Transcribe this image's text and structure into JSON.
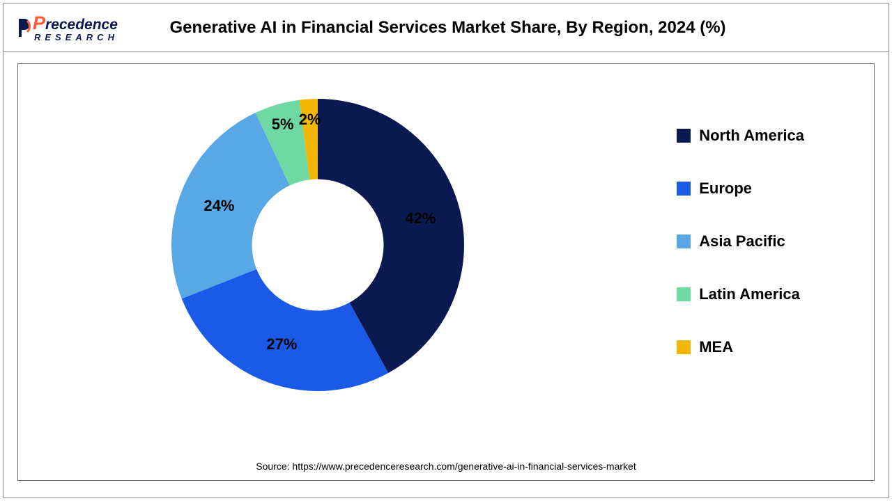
{
  "logo": {
    "top_prefix": "P",
    "top_rest": "recedence",
    "bottom": "RESEARCH",
    "accent_color": "#ff5a36",
    "main_color": "#0a1a50"
  },
  "chart": {
    "type": "donut",
    "title": "Generative AI in Financial Services Market Share, By Region, 2024 (%)",
    "title_fontsize": 24,
    "background_color": "#ffffff",
    "inner_radius_ratio": 0.45,
    "slices": [
      {
        "label": "North America",
        "value": 42,
        "color": "#0a1a50",
        "display": "42%"
      },
      {
        "label": "Europe",
        "value": 27,
        "color": "#1a5ae6",
        "display": "27%"
      },
      {
        "label": "Asia Pacific",
        "value": 24,
        "color": "#59a8e6",
        "display": "24%"
      },
      {
        "label": "Latin America",
        "value": 5,
        "color": "#6ed9a3",
        "display": "5%"
      },
      {
        "label": "MEA",
        "value": 2,
        "color": "#f2b705",
        "display": "2%"
      }
    ],
    "label_fontsize": 22,
    "legend": {
      "swatch_size": 20,
      "fontsize": 22,
      "gap": 50
    },
    "start_angle_deg": 0
  },
  "source": "Source: https://www.precedenceresearch.com/generative-ai-in-financial-services-market"
}
